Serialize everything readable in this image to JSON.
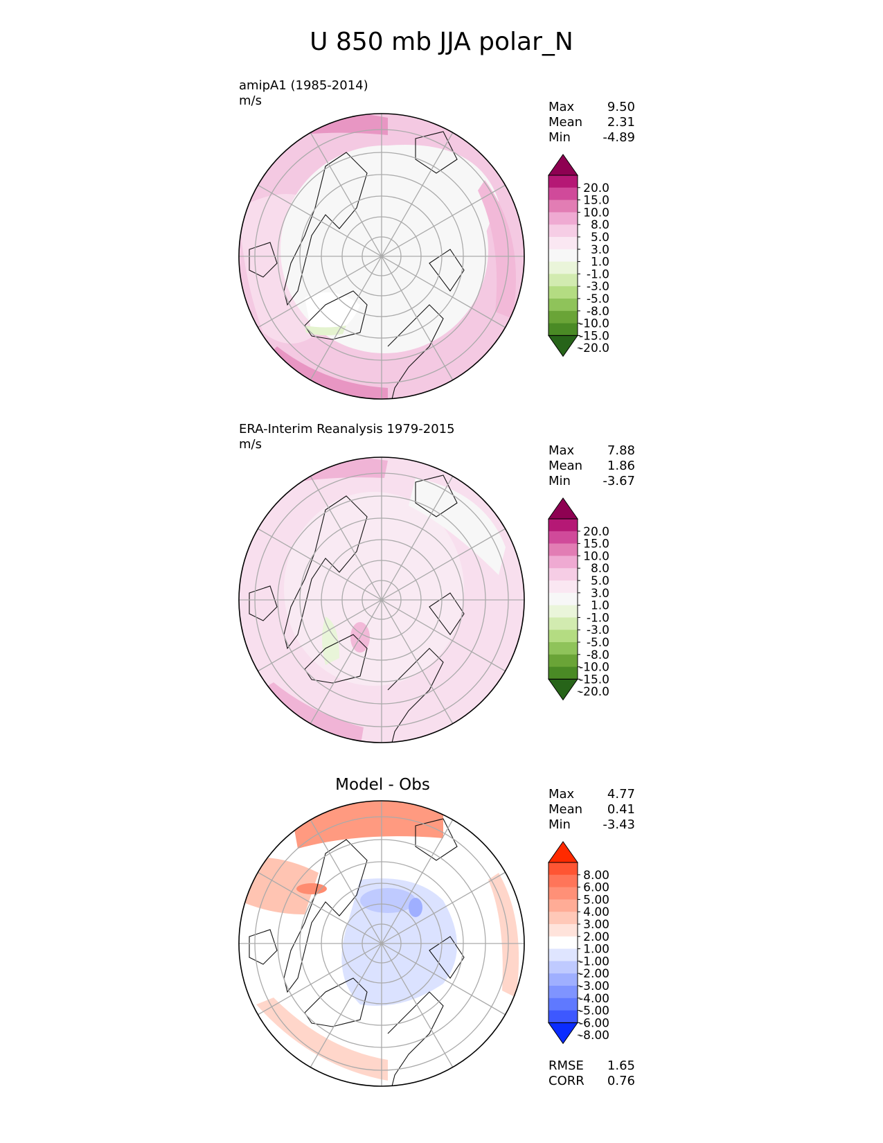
{
  "title": "U 850 mb JJA polar_N",
  "panels": [
    {
      "label": "amipA1 (1985-2014)",
      "units": "m/s",
      "stats": [
        {
          "name": "Max",
          "value": "9.50"
        },
        {
          "name": "Mean",
          "value": "2.31"
        },
        {
          "name": "Min",
          "value": "-4.89"
        }
      ]
    },
    {
      "label": "ERA-Interim Reanalysis 1979-2015",
      "units": "m/s",
      "stats": [
        {
          "name": "Max",
          "value": "7.88"
        },
        {
          "name": "Mean",
          "value": "1.86"
        },
        {
          "name": "Min",
          "value": "-3.67"
        }
      ]
    },
    {
      "label": "Model - Obs",
      "stats": [
        {
          "name": "Max",
          "value": "4.77"
        },
        {
          "name": "Mean",
          "value": "0.41"
        },
        {
          "name": "Min",
          "value": "-3.43"
        }
      ],
      "metrics": [
        {
          "name": "RMSE",
          "value": "1.65"
        },
        {
          "name": "CORR",
          "value": "0.76"
        }
      ]
    }
  ],
  "colorbars": {
    "field": {
      "ticks": [
        "20.0",
        "15.0",
        "10.0",
        "8.0",
        "5.0",
        "3.0",
        "1.0",
        "-1.0",
        "-3.0",
        "-5.0",
        "-8.0",
        "-10.0",
        "-15.0",
        "-20.0"
      ],
      "colors": [
        "#8e0152",
        "#b51875",
        "#d04a9a",
        "#e27db4",
        "#efaad2",
        "#f6cde5",
        "#fae7f2",
        "#f7f7f7",
        "#eaf5da",
        "#d2ebb0",
        "#b4dc82",
        "#8fc35a",
        "#6aa437",
        "#4a8a25",
        "#276419"
      ]
    },
    "diff": {
      "ticks": [
        "8.00",
        "6.00",
        "5.00",
        "4.00",
        "3.00",
        "2.00",
        "1.00",
        "-1.00",
        "-2.00",
        "-3.00",
        "-4.00",
        "-5.00",
        "-6.00",
        "-8.00"
      ],
      "colors": [
        "#ff2a00",
        "#ff5533",
        "#ff7559",
        "#ff9077",
        "#ffac96",
        "#ffc8b8",
        "#ffe3db",
        "#ffffff",
        "#dfe5ff",
        "#bfcaff",
        "#9fafff",
        "#7f94ff",
        "#5f79ff",
        "#3d58ff",
        "#0a2cff"
      ]
    }
  }
}
